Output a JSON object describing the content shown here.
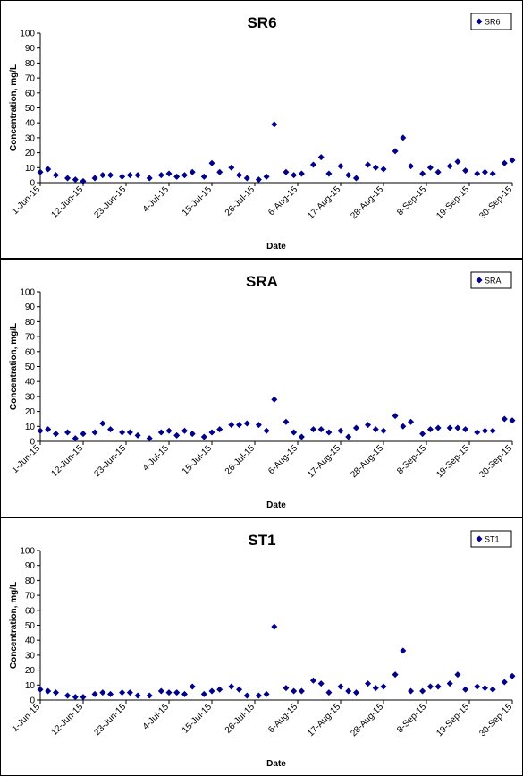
{
  "chart_data": [
    {
      "type": "scatter",
      "title": "SR6",
      "xlabel": "Date",
      "ylabel": "Concentration, mg/L",
      "ylim": [
        0,
        100
      ],
      "yticks": [
        0,
        10,
        20,
        30,
        40,
        50,
        60,
        70,
        80,
        90,
        100
      ],
      "xlim": [
        "1-Jun-15",
        "30-Sep-15"
      ],
      "xtick_labels": [
        "1-Jun-15",
        "12-Jun-15",
        "23-Jun-15",
        "4-Jul-15",
        "15-Jul-15",
        "26-Jul-15",
        "6-Aug-15",
        "17-Aug-15",
        "28-Aug-15",
        "8-Sep-15",
        "19-Sep-15",
        "30-Sep-15"
      ],
      "grid": false,
      "legend": "top-right",
      "marker": "diamond",
      "color": "#00008B",
      "series": [
        {
          "name": "SR6",
          "x": [
            "1-Jun-15",
            "3-Jun-15",
            "5-Jun-15",
            "8-Jun-15",
            "10-Jun-15",
            "12-Jun-15",
            "15-Jun-15",
            "17-Jun-15",
            "19-Jun-15",
            "22-Jun-15",
            "24-Jun-15",
            "26-Jun-15",
            "29-Jun-15",
            "2-Jul-15",
            "4-Jul-15",
            "6-Jul-15",
            "8-Jul-15",
            "10-Jul-15",
            "13-Jul-15",
            "15-Jul-15",
            "17-Jul-15",
            "20-Jul-15",
            "22-Jul-15",
            "24-Jul-15",
            "27-Jul-15",
            "29-Jul-15",
            "31-Jul-15",
            "3-Aug-15",
            "5-Aug-15",
            "7-Aug-15",
            "10-Aug-15",
            "12-Aug-15",
            "14-Aug-15",
            "17-Aug-15",
            "19-Aug-15",
            "21-Aug-15",
            "24-Aug-15",
            "26-Aug-15",
            "28-Aug-15",
            "31-Aug-15",
            "2-Sep-15",
            "4-Sep-15",
            "7-Sep-15",
            "9-Sep-15",
            "11-Sep-15",
            "14-Sep-15",
            "16-Sep-15",
            "18-Sep-15",
            "21-Sep-15",
            "23-Sep-15",
            "25-Sep-15",
            "28-Sep-15",
            "30-Sep-15"
          ],
          "y": [
            7,
            9,
            5,
            3,
            2,
            1,
            3,
            5,
            5,
            4,
            5,
            5,
            3,
            5,
            6,
            4,
            5,
            7,
            4,
            13,
            7,
            10,
            5,
            3,
            2,
            4,
            39,
            7,
            5,
            6,
            12,
            17,
            6,
            11,
            5,
            3,
            12,
            10,
            9,
            21,
            30,
            11,
            6,
            10,
            7,
            11,
            14,
            8,
            6,
            7,
            6,
            13,
            15
          ]
        }
      ]
    },
    {
      "type": "scatter",
      "title": "SRA",
      "xlabel": "Date",
      "ylabel": "Concentration, mg/L",
      "ylim": [
        0,
        100
      ],
      "yticks": [
        0,
        10,
        20,
        30,
        40,
        50,
        60,
        70,
        80,
        90,
        100
      ],
      "xlim": [
        "1-Jun-15",
        "30-Sep-15"
      ],
      "xtick_labels": [
        "1-Jun-15",
        "12-Jun-15",
        "23-Jun-15",
        "4-Jul-15",
        "15-Jul-15",
        "26-Jul-15",
        "6-Aug-15",
        "17-Aug-15",
        "28-Aug-15",
        "8-Sep-15",
        "19-Sep-15",
        "30-Sep-15"
      ],
      "grid": false,
      "legend": "top-right",
      "marker": "diamond",
      "color": "#00008B",
      "series": [
        {
          "name": "SRA",
          "x": [
            "1-Jun-15",
            "3-Jun-15",
            "5-Jun-15",
            "8-Jun-15",
            "10-Jun-15",
            "12-Jun-15",
            "15-Jun-15",
            "17-Jun-15",
            "19-Jun-15",
            "22-Jun-15",
            "24-Jun-15",
            "26-Jun-15",
            "29-Jun-15",
            "2-Jul-15",
            "4-Jul-15",
            "6-Jul-15",
            "8-Jul-15",
            "10-Jul-15",
            "13-Jul-15",
            "15-Jul-15",
            "17-Jul-15",
            "20-Jul-15",
            "22-Jul-15",
            "24-Jul-15",
            "27-Jul-15",
            "29-Jul-15",
            "31-Jul-15",
            "3-Aug-15",
            "5-Aug-15",
            "7-Aug-15",
            "10-Aug-15",
            "12-Aug-15",
            "14-Aug-15",
            "17-Aug-15",
            "19-Aug-15",
            "21-Aug-15",
            "24-Aug-15",
            "26-Aug-15",
            "28-Aug-15",
            "31-Aug-15",
            "2-Sep-15",
            "4-Sep-15",
            "7-Sep-15",
            "9-Sep-15",
            "11-Sep-15",
            "14-Sep-15",
            "16-Sep-15",
            "18-Sep-15",
            "21-Sep-15",
            "23-Sep-15",
            "25-Sep-15",
            "28-Sep-15",
            "30-Sep-15"
          ],
          "y": [
            7,
            8,
            5,
            6,
            2,
            5,
            6,
            12,
            8,
            6,
            6,
            4,
            2,
            6,
            7,
            4,
            7,
            5,
            3,
            6,
            8,
            11,
            11,
            12,
            11,
            7,
            28,
            13,
            6,
            3,
            8,
            8,
            6,
            7,
            3,
            9,
            11,
            8,
            7,
            17,
            10,
            13,
            5,
            8,
            9,
            9,
            9,
            8,
            6,
            7,
            7,
            15,
            14
          ]
        }
      ]
    },
    {
      "type": "scatter",
      "title": "ST1",
      "xlabel": "Date",
      "ylabel": "Concentration, mg/L",
      "ylim": [
        0,
        100
      ],
      "yticks": [
        0,
        10,
        20,
        30,
        40,
        50,
        60,
        70,
        80,
        90,
        100
      ],
      "xlim": [
        "1-Jun-15",
        "30-Sep-15"
      ],
      "xtick_labels": [
        "1-Jun-15",
        "12-Jun-15",
        "23-Jun-15",
        "4-Jul-15",
        "15-Jul-15",
        "26-Jul-15",
        "6-Aug-15",
        "17-Aug-15",
        "28-Aug-15",
        "8-Sep-15",
        "19-Sep-15",
        "30-Sep-15"
      ],
      "grid": false,
      "legend": "top-right",
      "marker": "diamond",
      "color": "#00008B",
      "series": [
        {
          "name": "ST1",
          "x": [
            "1-Jun-15",
            "3-Jun-15",
            "5-Jun-15",
            "8-Jun-15",
            "10-Jun-15",
            "12-Jun-15",
            "15-Jun-15",
            "17-Jun-15",
            "19-Jun-15",
            "22-Jun-15",
            "24-Jun-15",
            "26-Jun-15",
            "29-Jun-15",
            "2-Jul-15",
            "4-Jul-15",
            "6-Jul-15",
            "8-Jul-15",
            "10-Jul-15",
            "13-Jul-15",
            "15-Jul-15",
            "17-Jul-15",
            "20-Jul-15",
            "22-Jul-15",
            "24-Jul-15",
            "27-Jul-15",
            "29-Jul-15",
            "31-Jul-15",
            "3-Aug-15",
            "5-Aug-15",
            "7-Aug-15",
            "10-Aug-15",
            "12-Aug-15",
            "14-Aug-15",
            "17-Aug-15",
            "19-Aug-15",
            "21-Aug-15",
            "24-Aug-15",
            "26-Aug-15",
            "28-Aug-15",
            "31-Aug-15",
            "2-Sep-15",
            "4-Sep-15",
            "7-Sep-15",
            "9-Sep-15",
            "11-Sep-15",
            "14-Sep-15",
            "16-Sep-15",
            "18-Sep-15",
            "21-Sep-15",
            "23-Sep-15",
            "25-Sep-15",
            "28-Sep-15",
            "30-Sep-15"
          ],
          "y": [
            7,
            6,
            5,
            3,
            2,
            2,
            4,
            5,
            4,
            5,
            5,
            3,
            3,
            6,
            5,
            5,
            4,
            9,
            4,
            6,
            7,
            9,
            7,
            3,
            3,
            4,
            49,
            8,
            6,
            6,
            13,
            11,
            5,
            9,
            6,
            5,
            11,
            8,
            9,
            17,
            33,
            6,
            6,
            9,
            9,
            11,
            17,
            7,
            9,
            8,
            7,
            12,
            16
          ]
        }
      ]
    }
  ]
}
